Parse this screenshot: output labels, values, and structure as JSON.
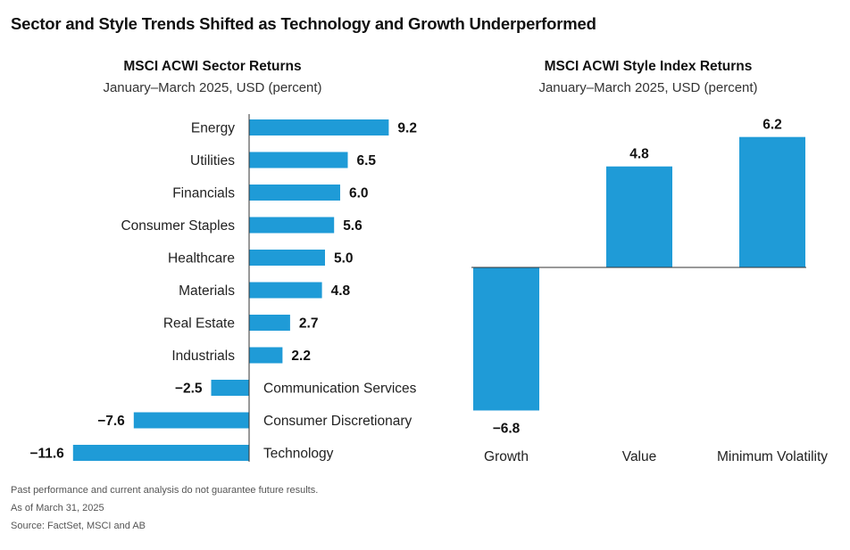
{
  "title": "Sector and Style Trends Shifted as Technology and Growth Underperformed",
  "colors": {
    "bar": "#1f9bd7",
    "axis": "#333333",
    "text": "#1a1a1a"
  },
  "chart_data": [
    {
      "type": "bar",
      "orientation": "horizontal",
      "title": "MSCI ACWI Sector Returns",
      "subtitle": "January–March 2025, USD (percent)",
      "categories": [
        "Energy",
        "Utilities",
        "Financials",
        "Consumer Staples",
        "Healthcare",
        "Materials",
        "Real Estate",
        "Industrials",
        "Communication Services",
        "Consumer Discretionary",
        "Technology"
      ],
      "values": [
        9.2,
        6.5,
        6.0,
        5.6,
        5.0,
        4.8,
        2.7,
        2.2,
        -2.5,
        -7.6,
        -11.6
      ],
      "value_labels": [
        "9.2",
        "6.5",
        "6.0",
        "5.6",
        "5.0",
        "4.8",
        "2.7",
        "2.2",
        "−2.5",
        "−7.6",
        "−11.6"
      ],
      "grid": false,
      "legend": "none"
    },
    {
      "type": "bar",
      "orientation": "vertical",
      "title": "MSCI ACWI Style Index Returns",
      "subtitle": "January–March 2025, USD (percent)",
      "categories": [
        "Growth",
        "Value",
        "Minimum Volatility"
      ],
      "values": [
        -6.8,
        4.8,
        6.2
      ],
      "value_labels": [
        "−6.8",
        "4.8",
        "6.2"
      ],
      "grid": false,
      "legend": "none"
    }
  ],
  "footnotes": [
    "Past performance and current analysis do not guarantee future results.",
    "As of March 31, 2025",
    "Source: FactSet, MSCI and AB"
  ]
}
